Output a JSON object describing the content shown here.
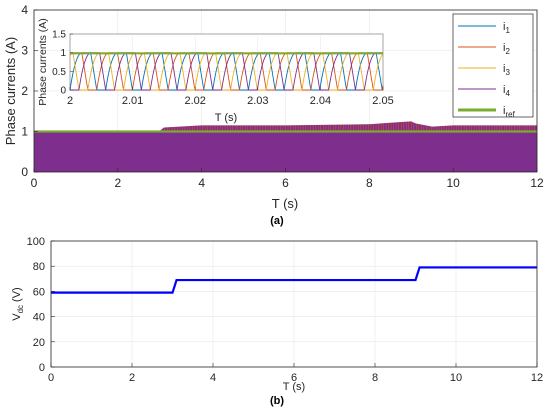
{
  "figure": {
    "panel_a_label": "(a)",
    "panel_b_label": "(b)"
  },
  "chart_data": [
    {
      "type": "line",
      "panel": "(a)",
      "xlabel": "T (s)",
      "ylabel": "Phase currents (A)",
      "xlim": [
        0,
        12
      ],
      "ylim": [
        0,
        4
      ],
      "xticks": [
        0,
        2,
        4,
        6,
        8,
        10,
        12
      ],
      "yticks": [
        0,
        1,
        2,
        3,
        4
      ],
      "grid": true,
      "legend_position": "top-right",
      "series": [
        {
          "name": "i_1",
          "label_main": "i",
          "label_sub": "1",
          "color": "#0072BD"
        },
        {
          "name": "i_2",
          "label_main": "i",
          "label_sub": "2",
          "color": "#D95319"
        },
        {
          "name": "i_3",
          "label_main": "i",
          "label_sub": "3",
          "color": "#EDB120"
        },
        {
          "name": "i_4",
          "label_main": "i",
          "label_sub": "4",
          "color": "#7E2F8E"
        },
        {
          "name": "i_ref",
          "label_main": "i",
          "label_sub": "ref",
          "color": "#77AC30",
          "x": [
            0,
            12
          ],
          "y": [
            1,
            1
          ]
        }
      ],
      "phase_current_envelope": {
        "x": [
          0,
          3.0,
          3.1,
          4.0,
          6.0,
          8.0,
          9.0,
          9.1,
          9.5,
          10.0,
          12.0
        ],
        "y": [
          1.0,
          1.02,
          1.1,
          1.15,
          1.15,
          1.18,
          1.25,
          1.2,
          1.12,
          1.15,
          1.15
        ]
      },
      "inset": {
        "xlabel": "T (s)",
        "ylabel": "Phase currents (A)",
        "xlim": [
          2,
          2.05
        ],
        "ylim": [
          0,
          1.5
        ],
        "xticks": [
          2,
          2.01,
          2.02,
          2.03,
          2.04,
          2.05
        ],
        "ytick_labels": [
          "0",
          "0.5",
          "1",
          "1.5"
        ],
        "yticks": [
          0,
          0.5,
          1,
          1.5
        ],
        "period": 0.0057,
        "peak": 1.0,
        "ref": 0.98
      }
    },
    {
      "type": "line",
      "panel": "(b)",
      "xlabel": "T (s)",
      "ylabel_main": "V",
      "ylabel_sub": "dc",
      "ylabel_unit": "(V)",
      "xlim": [
        0,
        12
      ],
      "ylim": [
        0,
        100
      ],
      "xticks": [
        0,
        2,
        4,
        6,
        8,
        10,
        12
      ],
      "yticks": [
        0,
        20,
        40,
        60,
        80,
        100
      ],
      "grid": true,
      "series": [
        {
          "name": "V_dc",
          "color": "#0000FF",
          "x": [
            0,
            3.0,
            3.1,
            9.0,
            9.1,
            12.0
          ],
          "y": [
            59,
            59,
            69,
            69,
            79,
            79
          ]
        }
      ]
    }
  ]
}
